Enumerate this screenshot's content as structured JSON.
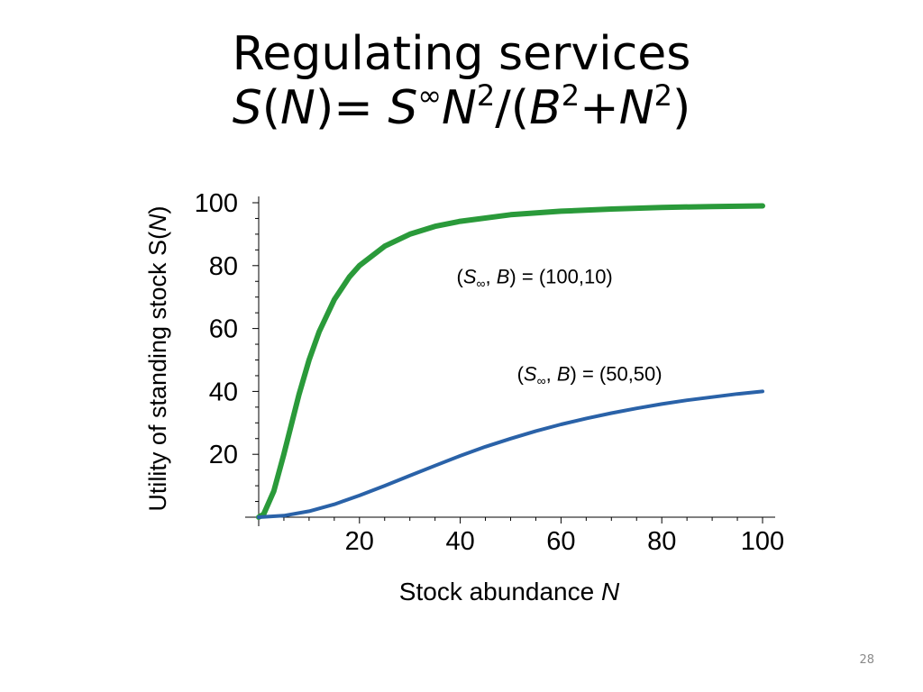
{
  "slide": {
    "title_line1": "Regulating services",
    "formula": {
      "S": "S",
      "open_paren": "(",
      "N": "N",
      "close_eq": ")= ",
      "S_inf_base": "S",
      "inf_sup": "∞",
      "N2_base": "N",
      "two_a": "2",
      "slash_open": "/(",
      "B": "B",
      "two_b": "2",
      "plus": "+",
      "N3_base": "N",
      "two_c": "2",
      "close": ")"
    },
    "page_number": "28"
  },
  "chart_data": {
    "type": "line",
    "title": "",
    "xlabel": "Stock abundance N",
    "ylabel": "Utility of standing stock S(N)",
    "xlim": [
      0,
      100
    ],
    "ylim": [
      0,
      100
    ],
    "x_ticks": [
      20,
      40,
      60,
      80,
      100
    ],
    "y_ticks": [
      20,
      40,
      60,
      80,
      100
    ],
    "grid": false,
    "series": [
      {
        "name": "(S∞, B) = (100,10)",
        "color": "#2a9a3a",
        "x": [
          0,
          1,
          3,
          5,
          8,
          10,
          12,
          15,
          18,
          20,
          25,
          30,
          35,
          40,
          50,
          60,
          70,
          80,
          90,
          100
        ],
        "y": [
          0,
          1,
          8.3,
          20,
          39,
          50,
          59,
          69.2,
          76.4,
          80,
          86.2,
          90,
          92.5,
          94.1,
          96.2,
          97.3,
          98,
          98.5,
          98.8,
          99
        ]
      },
      {
        "name": "(S∞, B) = (50,50)",
        "color": "#2a62a8",
        "x": [
          0,
          5,
          10,
          15,
          20,
          25,
          30,
          35,
          40,
          45,
          50,
          55,
          60,
          65,
          70,
          75,
          80,
          85,
          90,
          95,
          100
        ],
        "y": [
          0,
          0.5,
          1.9,
          4.1,
          6.9,
          10,
          13.2,
          16.4,
          19.5,
          22.4,
          25,
          27.4,
          29.5,
          31.4,
          33.1,
          34.6,
          36,
          37.2,
          38.2,
          39.2,
          40
        ]
      }
    ],
    "annotations": [
      {
        "prefix": "(",
        "S": "S",
        "sub": "∞",
        "comma": ", ",
        "B": "B",
        "suffix": ") = (100,10)",
        "at": [
          50,
          77
        ]
      },
      {
        "prefix": "(",
        "S": "S",
        "sub": "∞",
        "comma": ", ",
        "B": "B",
        "suffix": ") = (50,50)",
        "at": [
          62,
          46
        ]
      }
    ]
  }
}
